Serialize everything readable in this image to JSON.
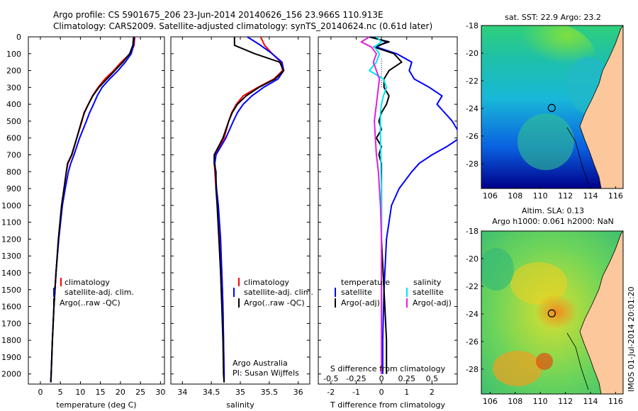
{
  "header": {
    "line1": "Argo profile: CS 5901675_206 23-Jun-2014 20140626_156 23.966S 110.913E",
    "line2": "Climatology: CARS2009. Satellite-adjusted climatology: synTS_20140624.nc (0.61d later)"
  },
  "map_sst": {
    "title": "sat. SST: 22.9  Argo: 23.2",
    "xticks": [
      "106",
      "108",
      "110",
      "112",
      "114",
      "116"
    ],
    "yticks": [
      "-18",
      "-20",
      "-22",
      "-24",
      "-26",
      "-28"
    ],
    "float_lon": 110.913,
    "float_lat": -23.966
  },
  "map_sla": {
    "title1": "Altim. SLA: 0.13",
    "title2": "Argo h1000: 0.061  h2000: NaN",
    "xticks": [
      "106",
      "108",
      "110",
      "112",
      "114",
      "116"
    ],
    "yticks": [
      "-18",
      "-20",
      "-22",
      "-24",
      "-26",
      "-28"
    ],
    "float_lon": 110.913,
    "float_lat": -23.966
  },
  "stamp": "IMOS 01-Jul-2014 20:01:20",
  "colors": {
    "climatology": "#ff0000",
    "satellite": "#0000ff",
    "argo": "#000000",
    "cyan": "#00e5ee",
    "magenta": "#e020e0",
    "land": "#fcc79a"
  },
  "chart_data": [
    {
      "type": "line",
      "xlabel": "temperature (deg C)",
      "ylabel": "",
      "xlim": [
        -3,
        31
      ],
      "ylim": [
        2060,
        0
      ],
      "xticks": [
        0,
        5,
        10,
        15,
        20,
        25,
        30
      ],
      "yticks": [
        0,
        100,
        200,
        300,
        400,
        500,
        600,
        700,
        800,
        900,
        1000,
        1100,
        1200,
        1300,
        1400,
        1500,
        1600,
        1700,
        1800,
        1900,
        2000
      ],
      "legend": [
        "climatology",
        "satellite-adj. clim.",
        "Argo(..raw -QC)"
      ],
      "series": [
        {
          "name": "climatology",
          "color": "#ff0000",
          "depth": [
            0,
            50,
            100,
            150,
            200,
            250,
            300,
            350,
            400,
            450,
            500,
            600,
            700,
            750,
            800,
            900,
            1000,
            1200,
            1400,
            1600,
            1800,
            2000,
            2050
          ],
          "values": [
            23.6,
            23.4,
            22.4,
            20.2,
            18.3,
            16.1,
            14.4,
            13.0,
            12.0,
            10.9,
            10.4,
            9.1,
            7.9,
            6.9,
            6.5,
            5.9,
            5.3,
            4.5,
            3.9,
            3.4,
            3.0,
            2.7,
            2.6
          ]
        },
        {
          "name": "satellite-adj. clim.",
          "color": "#0000ff",
          "depth": [
            0,
            50,
            100,
            150,
            200,
            250,
            300,
            350,
            400,
            450,
            500,
            600,
            700,
            750,
            800,
            900,
            1000,
            1200,
            1400,
            1600,
            1800,
            2000,
            2050
          ],
          "values": [
            23.4,
            23.3,
            22.7,
            21.2,
            19.4,
            17.3,
            15.4,
            14.2,
            13.3,
            12.3,
            11.5,
            9.8,
            8.4,
            7.6,
            7.0,
            6.2,
            5.5,
            4.6,
            3.9,
            3.4,
            3.0,
            2.7,
            2.6
          ]
        },
        {
          "name": "Argo(..raw -QC)",
          "color": "#000000",
          "depth": [
            0,
            50,
            100,
            150,
            200,
            250,
            300,
            350,
            400,
            450,
            500,
            600,
            700,
            750,
            800,
            900,
            1000,
            1200,
            1400,
            1600,
            1800,
            2000,
            2050
          ],
          "values": [
            23.3,
            23.1,
            22.3,
            20.6,
            18.6,
            16.6,
            14.6,
            13.1,
            12.0,
            11.0,
            10.3,
            9.1,
            7.8,
            6.8,
            6.5,
            5.9,
            5.3,
            4.5,
            3.9,
            3.4,
            3.0,
            2.7,
            2.6
          ]
        }
      ]
    },
    {
      "type": "line",
      "xlabel": "salinity",
      "ylabel": "",
      "xlim": [
        33.8,
        36.2
      ],
      "ylim": [
        2060,
        0
      ],
      "xticks": [
        34,
        34.5,
        35,
        35.5,
        36
      ],
      "legend": [
        "climatology",
        "satellite-adj. clim.",
        "Argo(..raw -QC)"
      ],
      "annotations": [
        "Argo Australia",
        "PI: Susan Wijffels"
      ],
      "series": [
        {
          "name": "climatology",
          "color": "#ff0000",
          "depth": [
            0,
            50,
            100,
            150,
            200,
            250,
            300,
            350,
            400,
            450,
            500,
            600,
            700,
            750,
            800,
            900,
            1000,
            1200,
            1400,
            1600,
            1800,
            2000,
            2050
          ],
          "values": [
            35.35,
            35.42,
            35.55,
            35.7,
            35.73,
            35.58,
            35.3,
            35.05,
            34.93,
            34.85,
            34.8,
            34.72,
            34.57,
            34.55,
            34.56,
            34.58,
            34.61,
            34.65,
            34.68,
            34.7,
            34.71,
            34.72,
            34.72
          ]
        },
        {
          "name": "satellite-adj. clim.",
          "color": "#0000ff",
          "depth": [
            0,
            50,
            100,
            150,
            200,
            250,
            300,
            350,
            400,
            450,
            500,
            600,
            700,
            750,
            800,
            900,
            1000,
            1200,
            1400,
            1600,
            1800,
            2000,
            2050
          ],
          "values": [
            35.12,
            35.35,
            35.55,
            35.72,
            35.75,
            35.65,
            35.4,
            35.2,
            35.05,
            34.95,
            34.88,
            34.75,
            34.58,
            34.56,
            34.57,
            34.59,
            34.62,
            34.66,
            34.68,
            34.7,
            34.71,
            34.72,
            34.72
          ]
        },
        {
          "name": "Argo(..raw -QC)",
          "color": "#000000",
          "depth": [
            0,
            50,
            100,
            150,
            200,
            250,
            300,
            350,
            400,
            450,
            500,
            600,
            700,
            750,
            800,
            900,
            1000,
            1200,
            1400,
            1600,
            1800,
            2000,
            2050
          ],
          "values": [
            34.9,
            34.9,
            35.25,
            35.68,
            35.75,
            35.6,
            35.32,
            35.1,
            34.95,
            34.86,
            34.8,
            34.7,
            34.55,
            34.55,
            34.58,
            34.58,
            34.6,
            34.63,
            34.66,
            34.68,
            34.7,
            34.71,
            34.72
          ]
        }
      ]
    },
    {
      "type": "line",
      "xlabel": "T difference from climatology",
      "xlabel2": "S difference from climatology",
      "xlim": [
        -2.5,
        3
      ],
      "ylim": [
        2060,
        0
      ],
      "xticks": [
        -2,
        -1,
        0,
        1,
        2
      ],
      "xticks_top": [
        "-0.5",
        "-0.25",
        "0",
        "0.25",
        "0.5"
      ],
      "legend_temperature": {
        "title": "temperature",
        "items": [
          "satellite",
          "Argo(-adj)"
        ]
      },
      "legend_salinity": {
        "title": "salinity",
        "items": [
          "satellite",
          "Argo(-adj)"
        ]
      },
      "series": [
        {
          "name": "temperature satellite",
          "color": "#0000ff",
          "depth": [
            0,
            30,
            60,
            100,
            150,
            200,
            250,
            300,
            350,
            400,
            450,
            500,
            550,
            600,
            650,
            700,
            750,
            800,
            900,
            1000,
            1200,
            1500,
            1800,
            2000
          ],
          "values": [
            -0.4,
            0.2,
            -0.2,
            0.6,
            1.2,
            1.1,
            1.3,
            1.9,
            2.4,
            2.2,
            2.5,
            2.8,
            3.0,
            3.1,
            2.6,
            2.0,
            1.5,
            1.2,
            0.7,
            0.4,
            0.2,
            0.1,
            0.05,
            0.05
          ]
        },
        {
          "name": "temperature Argo(-adj)",
          "color": "#000000",
          "depth": [
            0,
            30,
            60,
            100,
            150,
            200,
            250,
            300,
            350,
            400,
            450,
            500,
            550,
            600,
            650,
            700,
            750,
            800,
            900,
            1000,
            1200,
            1500,
            1800,
            2000
          ],
          "values": [
            -0.5,
            0.3,
            -0.3,
            0.5,
            0.8,
            0.3,
            0.1,
            0.1,
            0.3,
            0.2,
            0.0,
            -0.1,
            0.0,
            -0.2,
            0.0,
            -0.1,
            0.0,
            0.0,
            0.0,
            0.0,
            0.0,
            0.1,
            0.2,
            0.2
          ]
        },
        {
          "name": "salinity satellite",
          "color": "#00e5ee",
          "depth": [
            0,
            30,
            60,
            100,
            150,
            200,
            250,
            300,
            350,
            400,
            450,
            500,
            600,
            700,
            800,
            900,
            1000,
            1200,
            1500,
            1800,
            2000
          ],
          "values": [
            -0.05,
            0.0,
            -0.07,
            -0.02,
            -0.05,
            -0.12,
            0.02,
            0.05,
            0.02,
            0.0,
            -0.01,
            -0.01,
            -0.01,
            -0.005,
            -0.005,
            0.0,
            0.0,
            0.0,
            0.0,
            0.0,
            0.0
          ]
        },
        {
          "name": "salinity Argo(-adj)",
          "color": "#e020e0",
          "depth": [
            0,
            30,
            60,
            100,
            150,
            200,
            250,
            300,
            350,
            400,
            450,
            500,
            600,
            700,
            800,
            900,
            1000,
            1200,
            1500,
            1800,
            2000
          ],
          "values": [
            -0.12,
            -0.2,
            -0.1,
            -0.05,
            -0.08,
            -0.05,
            -0.02,
            -0.03,
            -0.04,
            -0.05,
            -0.06,
            -0.07,
            -0.06,
            -0.05,
            -0.03,
            -0.02,
            -0.01,
            0.0,
            0.0,
            0.0,
            0.0
          ]
        }
      ]
    }
  ]
}
